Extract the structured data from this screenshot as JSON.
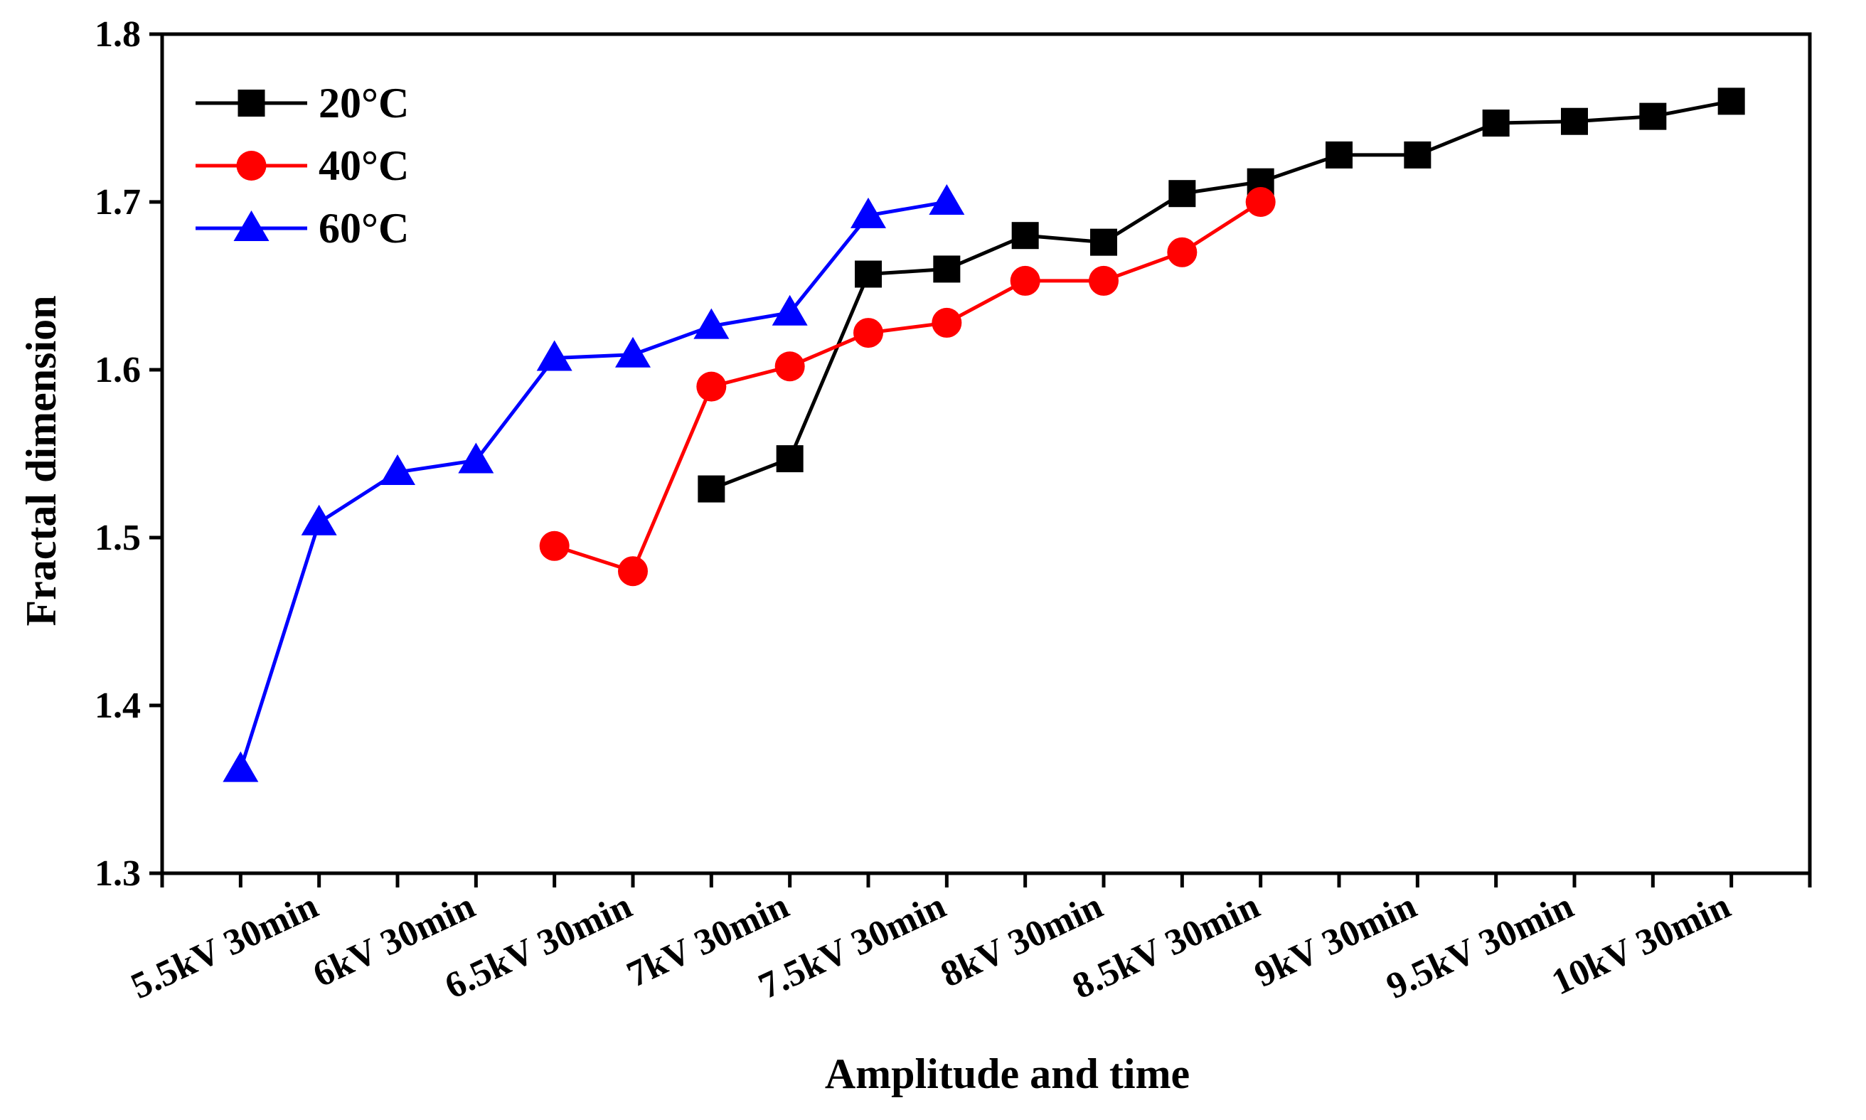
{
  "chart_data": {
    "type": "line",
    "title": "",
    "xlabel": "Amplitude and time",
    "ylabel": "Fractal dimension",
    "ylim": [
      1.3,
      1.8
    ],
    "yticks": [
      "1.3",
      "1.4",
      "1.5",
      "1.6",
      "1.7",
      "1.8"
    ],
    "x_positions": 21,
    "categories": [
      "5.5kV 30min",
      "6kV 30min",
      "6.5kV 30min",
      "7kV 30min",
      "7.5kV 30min",
      "8kV 30min",
      "8.5kV 30min",
      "9kV 30min",
      "9.5kV 30min",
      "10kV 30min"
    ],
    "category_positions": [
      2,
      4,
      6,
      8,
      10,
      12,
      14,
      16,
      18,
      20
    ],
    "legend_position": "top-left",
    "series": [
      {
        "name": "20°C",
        "color": "#000000",
        "marker": "square",
        "x": [
          7,
          8,
          9,
          10,
          11,
          12,
          13,
          14,
          15,
          16,
          17,
          18,
          19,
          20
        ],
        "values": [
          1.529,
          1.547,
          1.657,
          1.66,
          1.68,
          1.676,
          1.705,
          1.712,
          1.728,
          1.728,
          1.747,
          1.748,
          1.751,
          1.76
        ]
      },
      {
        "name": "40°C",
        "color": "#ff0000",
        "marker": "circle",
        "x": [
          5,
          6,
          7,
          8,
          9,
          10,
          11,
          12,
          13,
          14
        ],
        "values": [
          1.495,
          1.48,
          1.59,
          1.602,
          1.622,
          1.628,
          1.653,
          1.653,
          1.67,
          1.7
        ]
      },
      {
        "name": "60°C",
        "color": "#0000ff",
        "marker": "triangle",
        "x": [
          1,
          2,
          3,
          4,
          5,
          6,
          7,
          8,
          9,
          10
        ],
        "values": [
          1.362,
          1.509,
          1.539,
          1.546,
          1.607,
          1.609,
          1.626,
          1.634,
          1.692,
          1.7
        ]
      }
    ]
  }
}
